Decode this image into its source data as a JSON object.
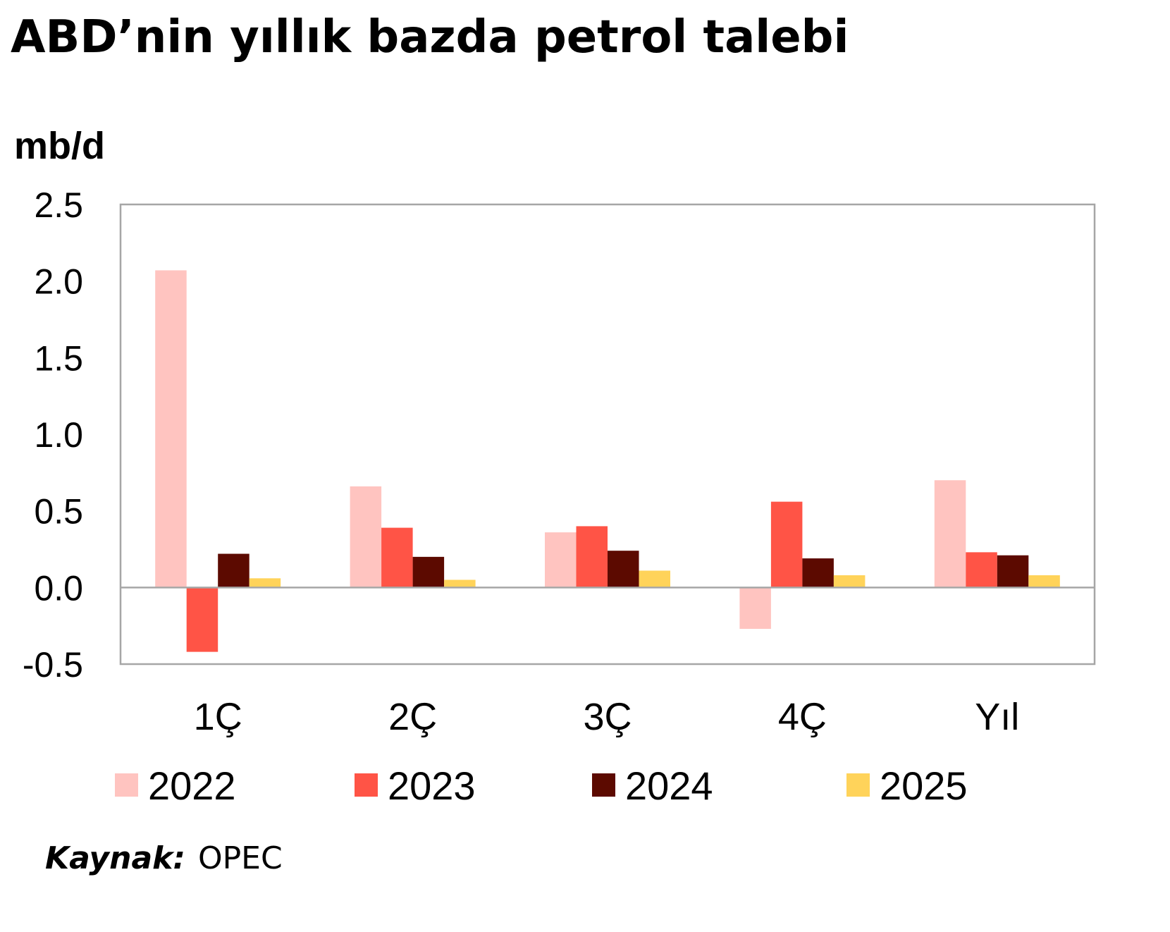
{
  "chart_data": {
    "type": "bar",
    "title": "ABD’nin yıllık bazda petrol talebi",
    "unit_label": "mb/d",
    "xlabel": "",
    "ylabel": "",
    "categories": [
      "1Ç",
      "2Ç",
      "3Ç",
      "4Ç",
      "Yıl"
    ],
    "ylim": [
      -0.5,
      2.5
    ],
    "yticks": [
      "2.5",
      "2.0",
      "1.5",
      "1.0",
      "0.5",
      "0.0",
      "-0.5"
    ],
    "grid": false,
    "legend_position": "bottom",
    "series": [
      {
        "name": "2022",
        "color": "#ffc4c0",
        "values": [
          2.07,
          0.66,
          0.36,
          -0.27,
          0.7
        ]
      },
      {
        "name": "2023",
        "color": "#ff5446",
        "values": [
          -0.42,
          0.39,
          0.4,
          0.56,
          0.23
        ]
      },
      {
        "name": "2024",
        "color": "#5c0a00",
        "values": [
          0.22,
          0.2,
          0.24,
          0.19,
          0.21
        ]
      },
      {
        "name": "2025",
        "color": "#ffd35a",
        "values": [
          0.06,
          0.05,
          0.11,
          0.08,
          0.08
        ]
      }
    ]
  },
  "source": {
    "label": "Kaynak:",
    "value": "OPEC"
  }
}
